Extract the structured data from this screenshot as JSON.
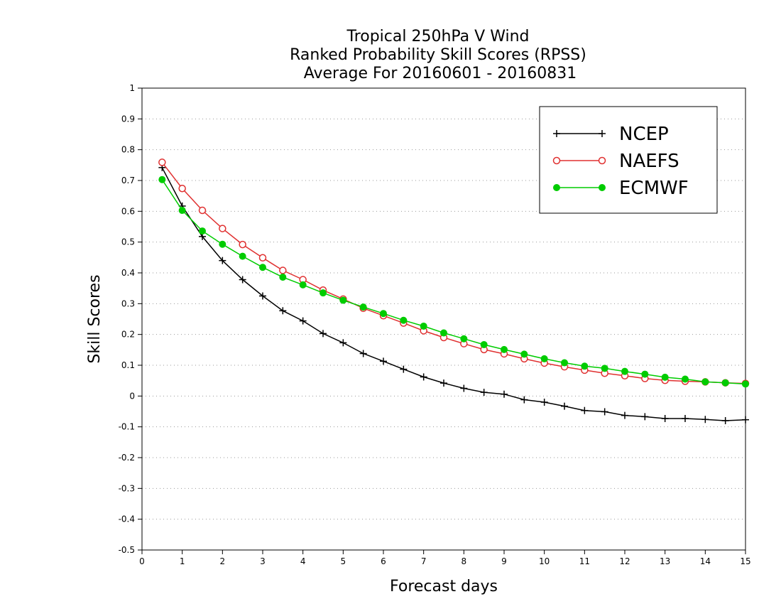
{
  "chart_data": {
    "type": "line",
    "title": [
      "Tropical 250hPa V Wind",
      "Ranked Probability Skill Scores (RPSS)",
      "Average For 20160601 - 20160831"
    ],
    "xlabel": "Forecast days",
    "ylabel": "Skill Scores",
    "xlim": [
      0,
      15
    ],
    "ylim": [
      -0.5,
      1
    ],
    "xticks": [
      "0",
      "1",
      "2",
      "3",
      "4",
      "5",
      "6",
      "7",
      "8",
      "9",
      "10",
      "11",
      "12",
      "13",
      "14",
      "15"
    ],
    "yticks": [
      "-0.5",
      "-0.4",
      "-0.3",
      "-0.2",
      "-0.1",
      "0",
      "0.1",
      "0.2",
      "0.3",
      "0.4",
      "0.5",
      "0.6",
      "0.7",
      "0.8",
      "0.9",
      "1"
    ],
    "grid": "horizontal dotted",
    "legend_position": "top-right",
    "x": [
      0.5,
      1,
      1.5,
      2,
      2.5,
      3,
      3.5,
      4,
      4.5,
      5,
      5.5,
      6,
      6.5,
      7,
      7.5,
      8,
      8.5,
      9,
      9.5,
      10,
      10.5,
      11,
      11.5,
      12,
      12.5,
      13,
      13.5,
      14,
      14.5,
      15
    ],
    "series": [
      {
        "name": "NCEP",
        "color": "#000000",
        "marker": "plus",
        "values": [
          0.742,
          0.617,
          0.518,
          0.44,
          0.378,
          0.325,
          0.277,
          0.244,
          0.203,
          0.173,
          0.138,
          0.113,
          0.087,
          0.062,
          0.042,
          0.025,
          0.012,
          0.006,
          -0.012,
          -0.02,
          -0.033,
          -0.047,
          -0.051,
          -0.063,
          -0.067,
          -0.073,
          -0.073,
          -0.076,
          -0.08,
          -0.077
        ]
      },
      {
        "name": "NAEFS",
        "color": "#e03030",
        "marker": "open-circle",
        "values": [
          0.759,
          0.674,
          0.603,
          0.544,
          0.492,
          0.449,
          0.408,
          0.378,
          0.344,
          0.315,
          0.285,
          0.261,
          0.237,
          0.212,
          0.19,
          0.17,
          0.151,
          0.137,
          0.121,
          0.107,
          0.095,
          0.084,
          0.074,
          0.066,
          0.057,
          0.051,
          0.048,
          0.046,
          0.043,
          0.041
        ]
      },
      {
        "name": "ECMWF",
        "color": "#00cc00",
        "marker": "filled-circle",
        "values": [
          0.703,
          0.603,
          0.536,
          0.493,
          0.454,
          0.418,
          0.386,
          0.361,
          0.335,
          0.311,
          0.289,
          0.268,
          0.246,
          0.227,
          0.205,
          0.186,
          0.167,
          0.151,
          0.136,
          0.121,
          0.108,
          0.097,
          0.09,
          0.08,
          0.071,
          0.061,
          0.055,
          0.046,
          0.043,
          0.039
        ]
      }
    ]
  }
}
